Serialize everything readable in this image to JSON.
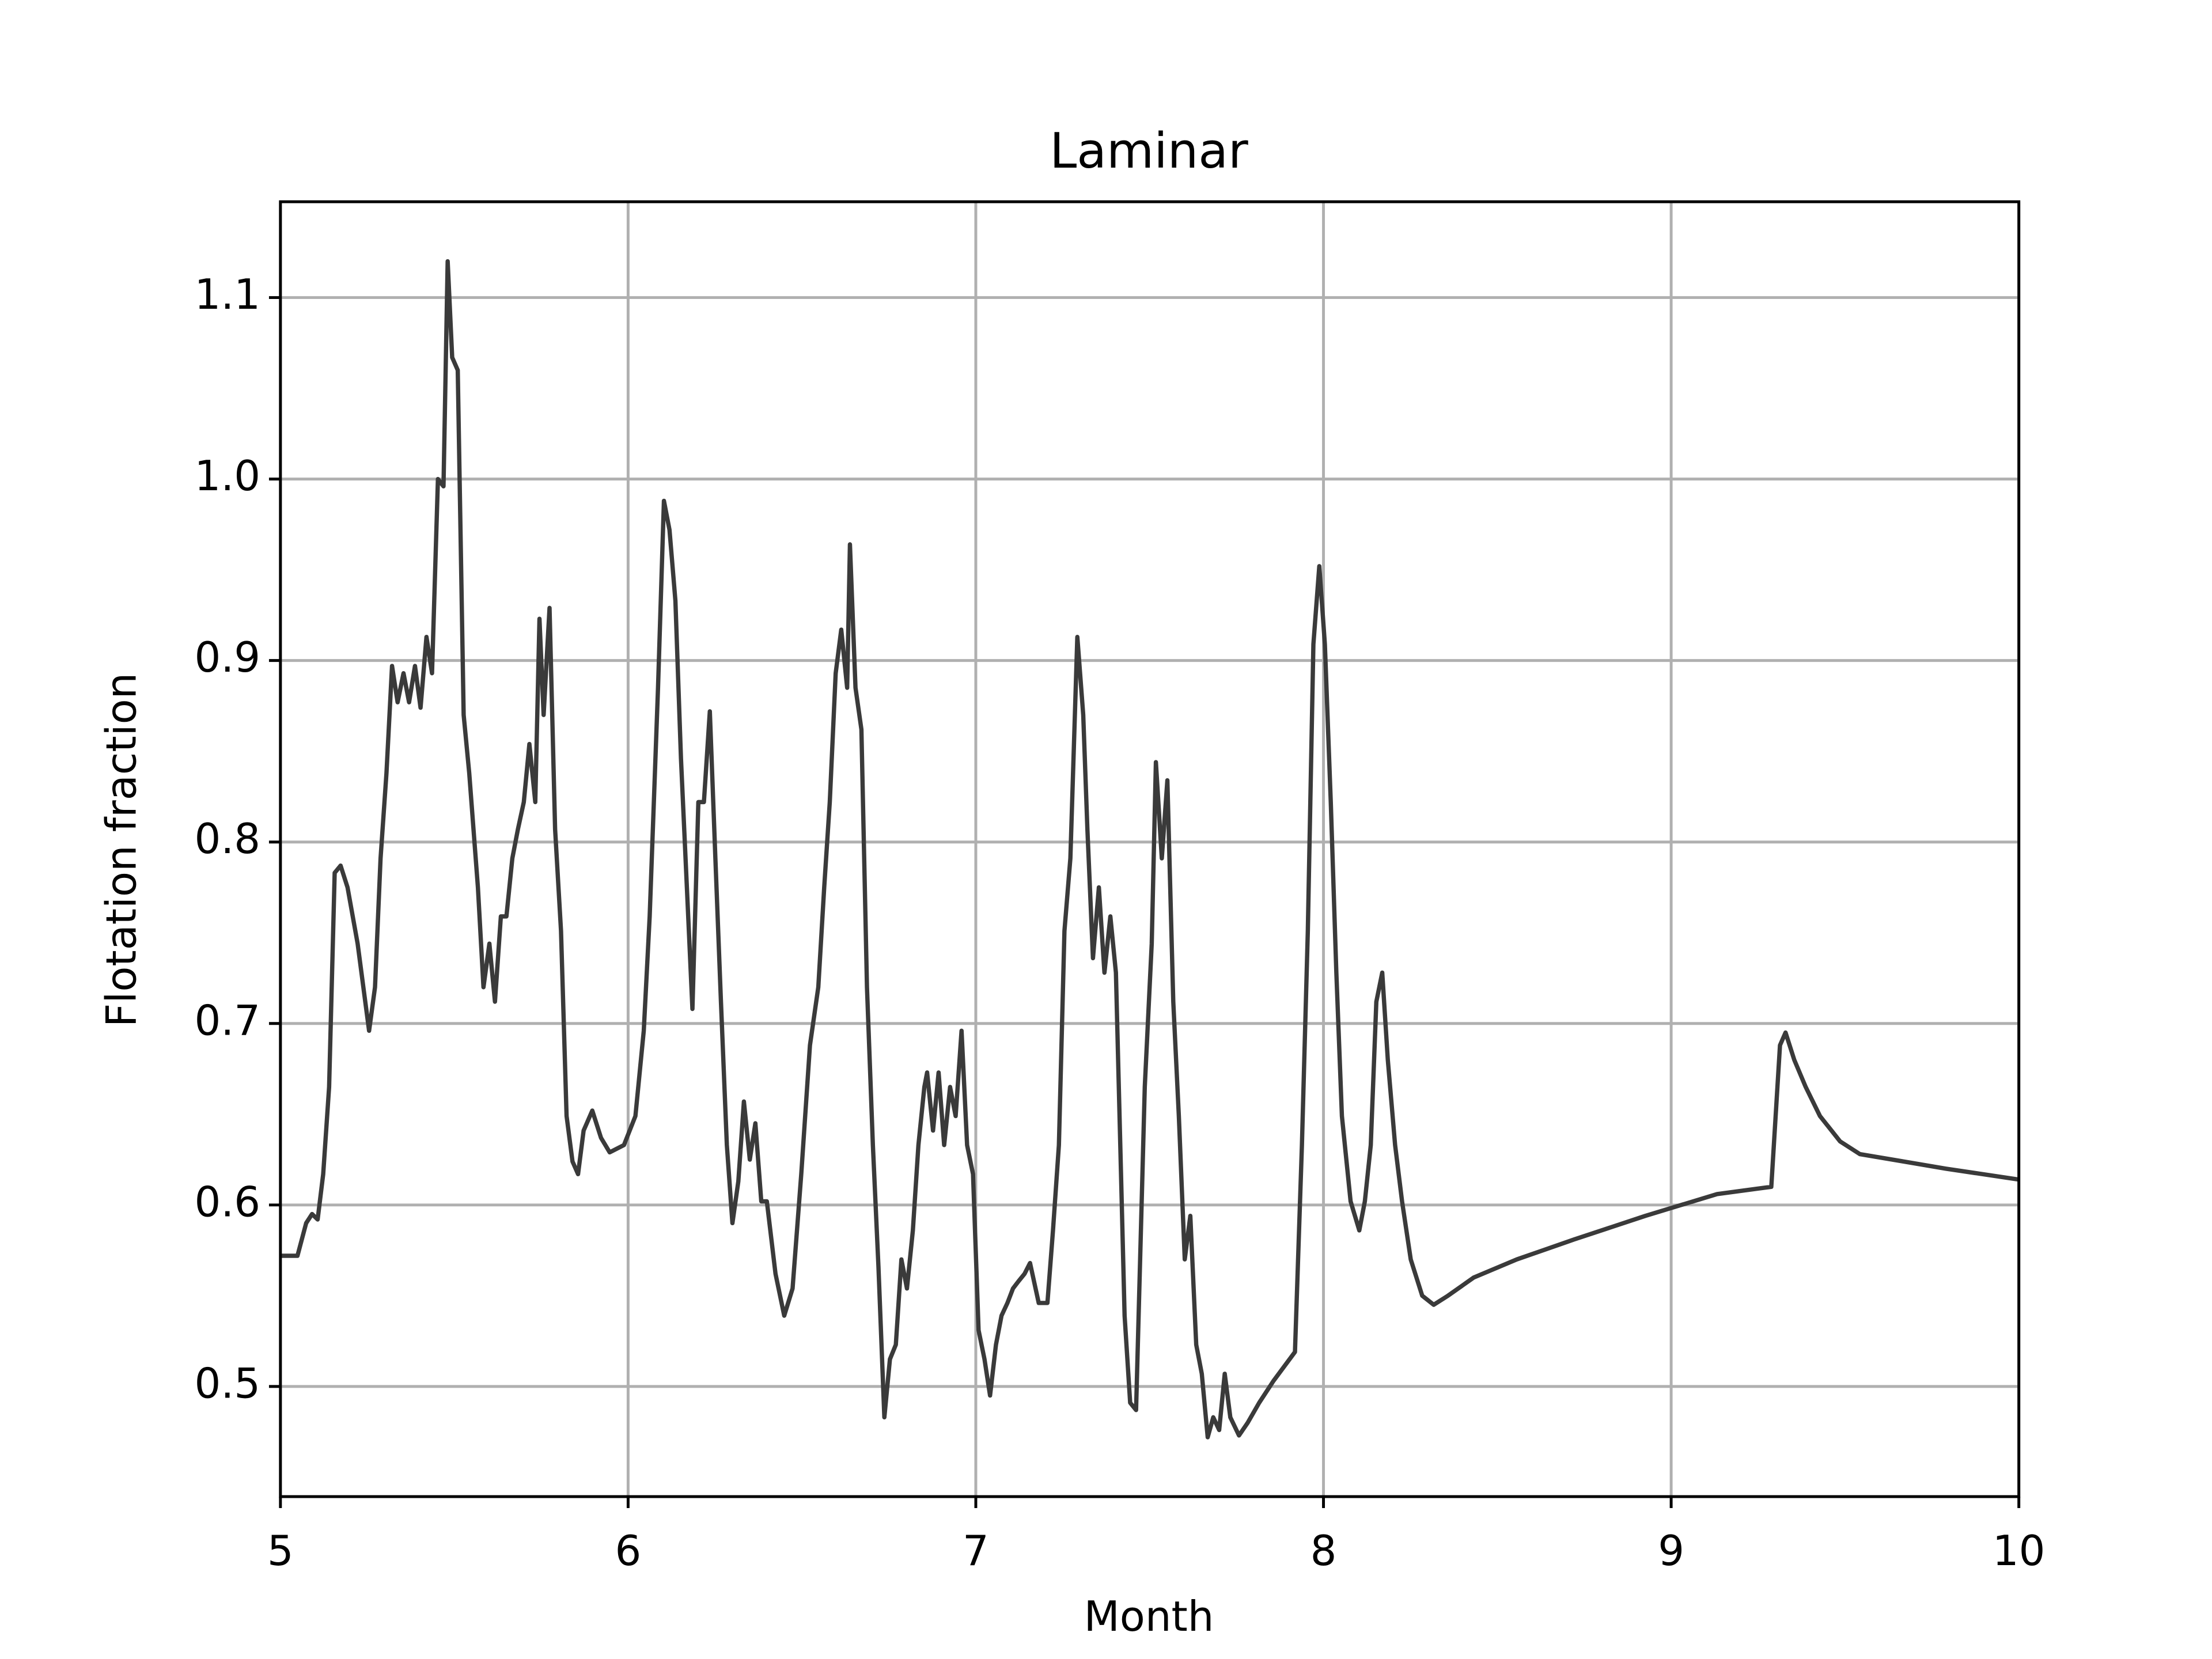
{
  "chart_data": {
    "type": "line",
    "title": "Laminar",
    "x_label": "Month",
    "y_label": "Flotation fraction",
    "xlim": [
      5,
      10
    ],
    "ylim": [
      0.4393,
      1.1528
    ],
    "xticks": [
      5,
      6,
      7,
      8,
      9,
      10
    ],
    "yticks": [
      0.5,
      0.6,
      0.7,
      0.8,
      0.9,
      {
        "value": 1,
        "label": "1.0"
      },
      1.1
    ],
    "grid": true,
    "x": [
      5.0,
      5.049,
      5.074,
      5.091,
      5.107,
      5.123,
      5.14,
      5.156,
      5.173,
      5.193,
      5.222,
      5.255,
      5.272,
      5.288,
      5.305,
      5.321,
      5.337,
      5.354,
      5.37,
      5.387,
      5.403,
      5.42,
      5.436,
      5.453,
      5.469,
      5.481,
      5.494,
      5.51,
      5.527,
      5.543,
      5.568,
      5.584,
      5.601,
      5.617,
      5.634,
      5.65,
      5.667,
      5.683,
      5.7,
      5.716,
      5.733,
      5.745,
      5.757,
      5.774,
      5.79,
      5.807,
      5.823,
      5.84,
      5.856,
      5.872,
      5.897,
      5.922,
      5.947,
      5.988,
      6.021,
      6.045,
      6.062,
      6.086,
      6.103,
      6.119,
      6.136,
      6.152,
      6.169,
      6.185,
      6.202,
      6.218,
      6.235,
      6.251,
      6.267,
      6.284,
      6.3,
      6.317,
      6.333,
      6.35,
      6.366,
      6.383,
      6.399,
      6.424,
      6.449,
      6.473,
      6.498,
      6.523,
      6.547,
      6.564,
      6.58,
      6.597,
      6.613,
      6.63,
      6.638,
      6.654,
      6.671,
      6.687,
      6.704,
      6.72,
      6.737,
      6.753,
      6.77,
      6.786,
      6.802,
      6.819,
      6.835,
      6.852,
      6.86,
      6.877,
      6.893,
      6.909,
      6.926,
      6.942,
      6.959,
      6.975,
      6.992,
      7.008,
      7.025,
      7.041,
      7.058,
      7.074,
      7.091,
      7.107,
      7.123,
      7.14,
      7.156,
      7.181,
      7.206,
      7.222,
      7.239,
      7.255,
      7.272,
      7.292,
      7.309,
      7.321,
      7.337,
      7.354,
      7.37,
      7.387,
      7.403,
      7.428,
      7.444,
      7.461,
      7.486,
      7.506,
      7.518,
      7.535,
      7.551,
      7.568,
      7.584,
      7.601,
      7.617,
      7.634,
      7.65,
      7.667,
      7.683,
      7.7,
      7.716,
      7.732,
      7.757,
      7.782,
      7.815,
      7.856,
      7.918,
      7.938,
      7.955,
      7.971,
      7.988,
      8.004,
      8.021,
      8.037,
      8.053,
      8.078,
      8.103,
      8.119,
      8.136,
      8.152,
      8.169,
      8.185,
      8.206,
      8.226,
      8.251,
      8.284,
      8.317,
      8.358,
      8.432,
      8.556,
      8.721,
      8.926,
      9.132,
      9.288,
      9.313,
      9.329,
      9.354,
      9.387,
      9.428,
      9.486,
      9.543,
      9.667,
      9.79,
      10.0
    ],
    "series": [
      {
        "color": "#3a3a3a",
        "values": [
          0.572,
          0.572,
          0.59,
          0.595,
          0.592,
          0.617,
          0.665,
          0.783,
          0.787,
          0.775,
          0.744,
          0.696,
          0.72,
          0.791,
          0.838,
          0.897,
          0.877,
          0.893,
          0.877,
          0.897,
          0.874,
          0.913,
          0.893,
          1.0,
          0.996,
          1.12,
          1.067,
          1.06,
          0.87,
          0.838,
          0.775,
          0.72,
          0.744,
          0.712,
          0.759,
          0.759,
          0.791,
          0.807,
          0.822,
          0.854,
          0.822,
          0.923,
          0.87,
          0.929,
          0.807,
          0.751,
          0.649,
          0.624,
          0.617,
          0.641,
          0.652,
          0.637,
          0.629,
          0.633,
          0.649,
          0.696,
          0.759,
          0.885,
          0.988,
          0.972,
          0.933,
          0.846,
          0.775,
          0.708,
          0.822,
          0.822,
          0.872,
          0.791,
          0.712,
          0.633,
          0.59,
          0.613,
          0.657,
          0.625,
          0.645,
          0.602,
          0.602,
          0.562,
          0.539,
          0.554,
          0.617,
          0.688,
          0.72,
          0.775,
          0.822,
          0.893,
          0.917,
          0.885,
          0.964,
          0.885,
          0.862,
          0.72,
          0.633,
          0.566,
          0.483,
          0.515,
          0.523,
          0.57,
          0.554,
          0.586,
          0.633,
          0.665,
          0.673,
          0.641,
          0.673,
          0.633,
          0.665,
          0.649,
          0.696,
          0.633,
          0.617,
          0.531,
          0.515,
          0.495,
          0.523,
          0.539,
          0.546,
          0.554,
          0.558,
          0.562,
          0.568,
          0.546,
          0.546,
          0.586,
          0.633,
          0.751,
          0.791,
          0.913,
          0.87,
          0.807,
          0.736,
          0.775,
          0.728,
          0.759,
          0.728,
          0.539,
          0.491,
          0.487,
          0.665,
          0.744,
          0.844,
          0.791,
          0.834,
          0.712,
          0.649,
          0.57,
          0.594,
          0.523,
          0.507,
          0.472,
          0.483,
          0.476,
          0.507,
          0.483,
          0.473,
          0.48,
          0.491,
          0.503,
          0.519,
          0.633,
          0.751,
          0.909,
          0.952,
          0.909,
          0.822,
          0.728,
          0.649,
          0.602,
          0.586,
          0.602,
          0.633,
          0.712,
          0.728,
          0.68,
          0.633,
          0.602,
          0.57,
          0.55,
          0.545,
          0.55,
          0.56,
          0.57,
          0.581,
          0.594,
          0.606,
          0.61,
          0.688,
          0.695,
          0.68,
          0.665,
          0.649,
          0.635,
          0.628,
          0.624,
          0.62,
          0.614
        ]
      }
    ]
  }
}
